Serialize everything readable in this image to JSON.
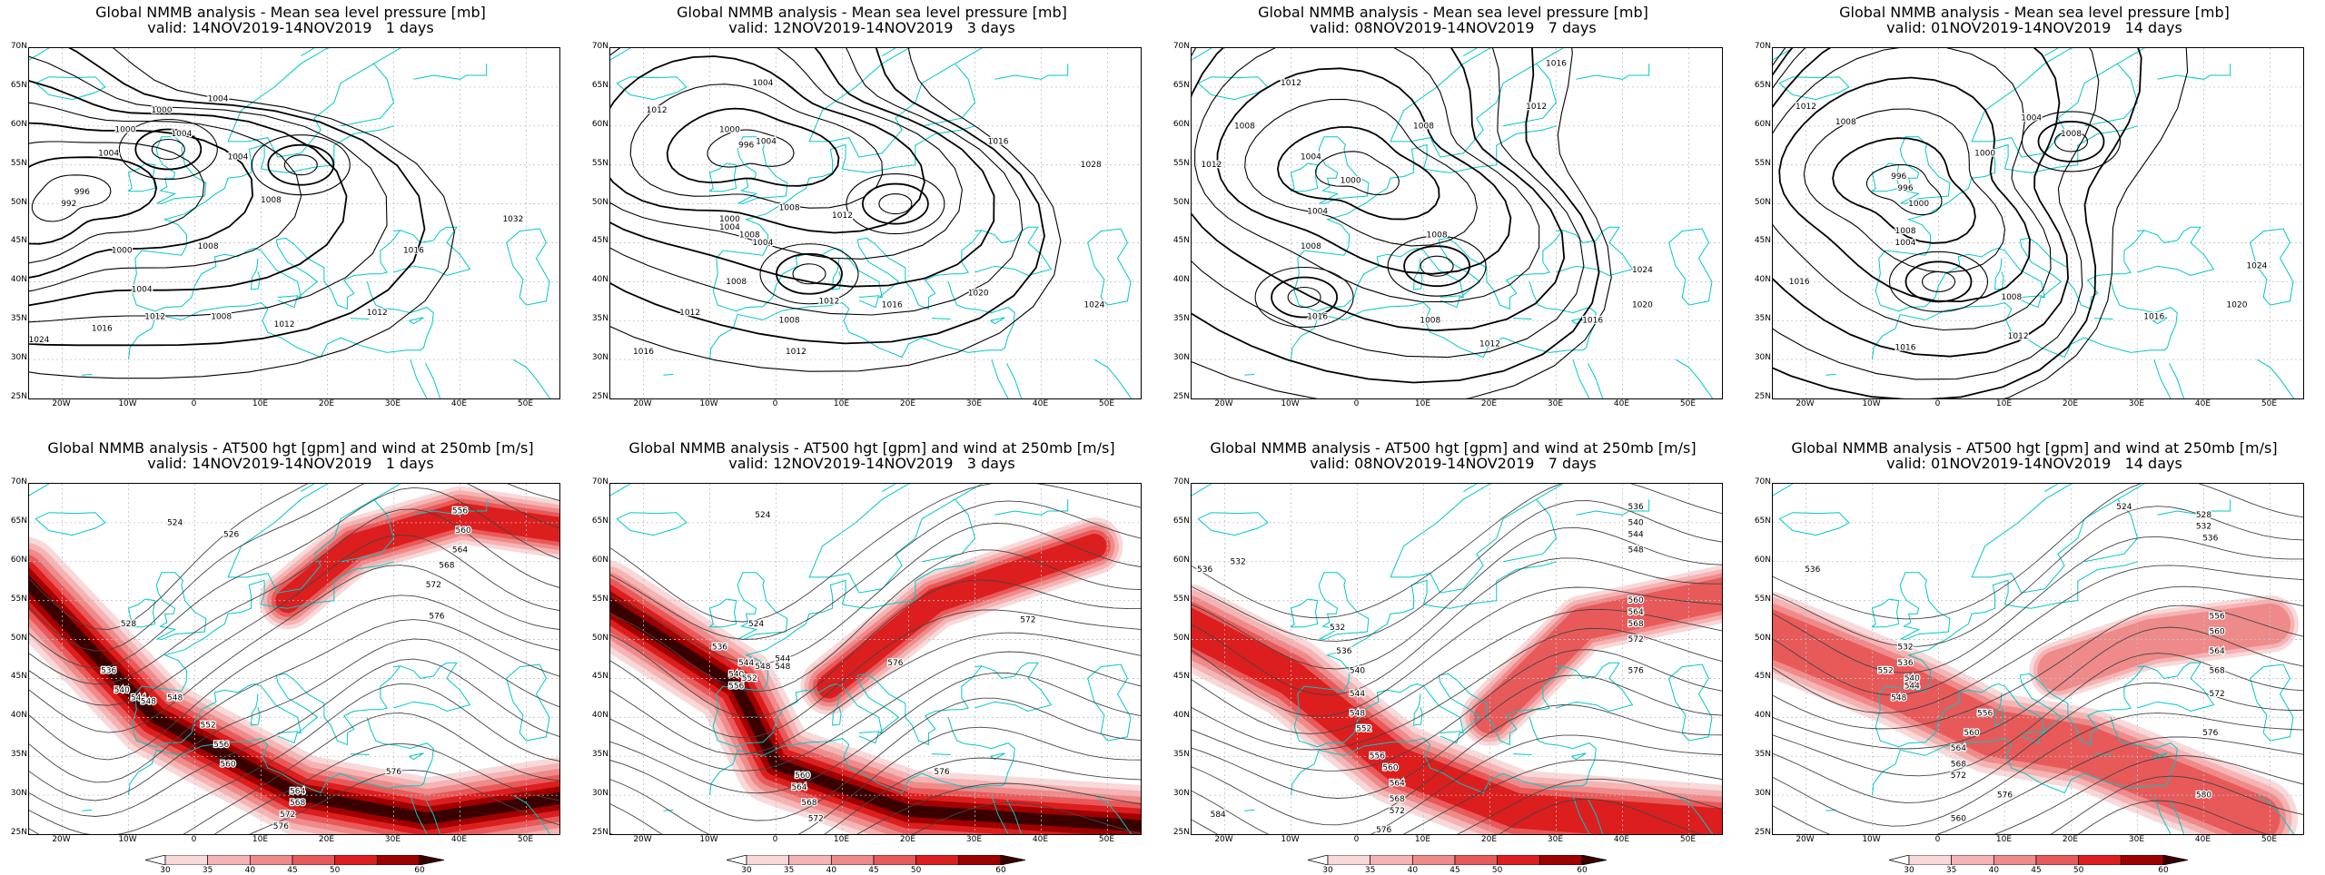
{
  "mslp_title": "Global NMMB analysis - Mean sea level pressure [mb]",
  "z500_title": "Global NMMB analysis - AT500 hgt [gpm] and wind at 250mb [m/s]",
  "lat_labels": [
    "70N",
    "65N",
    "60N",
    "55N",
    "50N",
    "45N",
    "40N",
    "35N",
    "30N",
    "25N"
  ],
  "lon_labels": [
    "20W",
    "10W",
    "0",
    "10E",
    "20E",
    "30E",
    "40E",
    "50E"
  ],
  "map_extent": {
    "lon": [
      -25,
      55
    ],
    "lat": [
      25,
      70
    ]
  },
  "colors": {
    "contour": "#000000",
    "coastline": "#00c8c8",
    "grid": "#c0c0c0",
    "wind_30": "#f8d8d8",
    "wind_35": "#f5b3b3",
    "wind_40": "#ef8a8a",
    "wind_45": "#e85a5a",
    "wind_50": "#dd1e1e",
    "wind_60": "#a00000",
    "wind_max": "#3a0000"
  },
  "colorbar": {
    "ticks": [
      "30",
      "35",
      "40",
      "45",
      "50",
      "60"
    ]
  },
  "periods": [
    {
      "valid": "valid: 14NOV2019-14NOV2019   1 days",
      "mslp_labels": [
        {
          "t": "1004",
          "lon": 3.5,
          "lat": 63.5
        },
        {
          "t": "1000",
          "lon": -5,
          "lat": 62
        },
        {
          "t": "1000",
          "lon": -10.5,
          "lat": 59.5
        },
        {
          "t": "1004",
          "lon": -2,
          "lat": 59
        },
        {
          "t": "1004",
          "lon": -13,
          "lat": 56.5
        },
        {
          "t": "1004",
          "lon": 6.5,
          "lat": 56
        },
        {
          "t": "996",
          "lon": -17,
          "lat": 51.5
        },
        {
          "t": "992",
          "lon": -19,
          "lat": 50
        },
        {
          "t": "1008",
          "lon": 11.5,
          "lat": 50.5
        },
        {
          "t": "1000",
          "lon": -11,
          "lat": 44
        },
        {
          "t": "1008",
          "lon": 2,
          "lat": 44.5
        },
        {
          "t": "1004",
          "lon": -8,
          "lat": 39
        },
        {
          "t": "1016",
          "lon": 33,
          "lat": 44
        },
        {
          "t": "1032",
          "lon": 48,
          "lat": 48
        },
        {
          "t": "1016",
          "lon": -14,
          "lat": 34
        },
        {
          "t": "1012",
          "lon": -6,
          "lat": 35.5
        },
        {
          "t": "1008",
          "lon": 4,
          "lat": 35.5
        },
        {
          "t": "1012",
          "lon": 13.5,
          "lat": 34.5
        },
        {
          "t": "1012",
          "lon": 27.5,
          "lat": 36
        },
        {
          "t": "1024",
          "lon": -23.5,
          "lat": 32.5
        }
      ],
      "z500_labels": [
        {
          "t": "524",
          "lon": -3,
          "lat": 65
        },
        {
          "t": "526",
          "lon": 5.5,
          "lat": 63.5
        },
        {
          "t": "556",
          "lon": 40,
          "lat": 66.5
        },
        {
          "t": "560",
          "lon": 40.5,
          "lat": 64
        },
        {
          "t": "564",
          "lon": 40,
          "lat": 61.5
        },
        {
          "t": "568",
          "lon": 38,
          "lat": 59.5
        },
        {
          "t": "572",
          "lon": 36,
          "lat": 57
        },
        {
          "t": "576",
          "lon": 36.5,
          "lat": 53
        },
        {
          "t": "528",
          "lon": -10,
          "lat": 52
        },
        {
          "t": "536",
          "lon": -13,
          "lat": 46
        },
        {
          "t": "540",
          "lon": -11,
          "lat": 43.5
        },
        {
          "t": "544",
          "lon": -8.5,
          "lat": 42.5
        },
        {
          "t": "548",
          "lon": -7,
          "lat": 42
        },
        {
          "t": "548",
          "lon": -3,
          "lat": 42.5
        },
        {
          "t": "552",
          "lon": 2,
          "lat": 39
        },
        {
          "t": "556",
          "lon": 4,
          "lat": 36.5
        },
        {
          "t": "560",
          "lon": 5,
          "lat": 34
        },
        {
          "t": "564",
          "lon": 15.5,
          "lat": 30.5
        },
        {
          "t": "568",
          "lon": 15.5,
          "lat": 29
        },
        {
          "t": "572",
          "lon": 14,
          "lat": 27.5
        },
        {
          "t": "576",
          "lon": 30,
          "lat": 33
        },
        {
          "t": "576",
          "lon": 13,
          "lat": 26
        }
      ]
    },
    {
      "valid": "valid: 12NOV2019-14NOV2019   3 days",
      "mslp_labels": [
        {
          "t": "1004",
          "lon": -2,
          "lat": 65.5
        },
        {
          "t": "1012",
          "lon": -18,
          "lat": 62
        },
        {
          "t": "1000",
          "lon": -7,
          "lat": 59.5
        },
        {
          "t": "996",
          "lon": -4.5,
          "lat": 57.5
        },
        {
          "t": "1004",
          "lon": -1.5,
          "lat": 58
        },
        {
          "t": "1016",
          "lon": 33.5,
          "lat": 58
        },
        {
          "t": "1028",
          "lon": 47.5,
          "lat": 55
        },
        {
          "t": "1008",
          "lon": 2,
          "lat": 49.5
        },
        {
          "t": "1012",
          "lon": 10,
          "lat": 48.5
        },
        {
          "t": "1000",
          "lon": -7,
          "lat": 48
        },
        {
          "t": "1004",
          "lon": -7,
          "lat": 47
        },
        {
          "t": "1008",
          "lon": -4,
          "lat": 46
        },
        {
          "t": "1004",
          "lon": -2,
          "lat": 45
        },
        {
          "t": "1008",
          "lon": -6,
          "lat": 40
        },
        {
          "t": "1012",
          "lon": -13,
          "lat": 36
        },
        {
          "t": "1012",
          "lon": 8,
          "lat": 37.5
        },
        {
          "t": "1016",
          "lon": 17.5,
          "lat": 37
        },
        {
          "t": "1020",
          "lon": 30.5,
          "lat": 38.5
        },
        {
          "t": "1024",
          "lon": 48,
          "lat": 37
        },
        {
          "t": "1008",
          "lon": 2,
          "lat": 35
        },
        {
          "t": "1016",
          "lon": -20,
          "lat": 31
        },
        {
          "t": "1012",
          "lon": 3,
          "lat": 31
        }
      ],
      "z500_labels": [
        {
          "t": "524",
          "lon": -2,
          "lat": 66
        },
        {
          "t": "524",
          "lon": -3,
          "lat": 52
        },
        {
          "t": "536",
          "lon": -8.5,
          "lat": 49
        },
        {
          "t": "540",
          "lon": -6,
          "lat": 45.5
        },
        {
          "t": "544",
          "lon": -4.5,
          "lat": 47
        },
        {
          "t": "548",
          "lon": -2,
          "lat": 46.5
        },
        {
          "t": "544",
          "lon": 1,
          "lat": 47.5
        },
        {
          "t": "548",
          "lon": 1,
          "lat": 46.5
        },
        {
          "t": "552",
          "lon": -4,
          "lat": 45
        },
        {
          "t": "556",
          "lon": -6,
          "lat": 44
        },
        {
          "t": "576",
          "lon": 18,
          "lat": 47
        },
        {
          "t": "572",
          "lon": 38,
          "lat": 52.5
        },
        {
          "t": "576",
          "lon": 25,
          "lat": 33
        },
        {
          "t": "560",
          "lon": 4,
          "lat": 32.5
        },
        {
          "t": "564",
          "lon": 3.5,
          "lat": 31
        },
        {
          "t": "568",
          "lon": 5,
          "lat": 29
        },
        {
          "t": "572",
          "lon": 6,
          "lat": 27
        }
      ]
    },
    {
      "valid": "valid: 08NOV2019-14NOV2019   7 days",
      "mslp_labels": [
        {
          "t": "1016",
          "lon": 30,
          "lat": 68
        },
        {
          "t": "1012",
          "lon": -10,
          "lat": 65.5
        },
        {
          "t": "1012",
          "lon": 27,
          "lat": 62.5
        },
        {
          "t": "1008",
          "lon": -17,
          "lat": 60
        },
        {
          "t": "1008",
          "lon": 10,
          "lat": 60
        },
        {
          "t": "1012",
          "lon": -22,
          "lat": 55
        },
        {
          "t": "1004",
          "lon": -7,
          "lat": 56
        },
        {
          "t": "1000",
          "lon": -1,
          "lat": 53
        },
        {
          "t": "1008",
          "lon": -7,
          "lat": 44.5
        },
        {
          "t": "1004",
          "lon": -6,
          "lat": 49
        },
        {
          "t": "1008",
          "lon": 12,
          "lat": 46
        },
        {
          "t": "1024",
          "lon": 43,
          "lat": 41.5
        },
        {
          "t": "1016",
          "lon": -6,
          "lat": 35.5
        },
        {
          "t": "1008",
          "lon": 11,
          "lat": 35
        },
        {
          "t": "1016",
          "lon": 35.5,
          "lat": 35
        },
        {
          "t": "1020",
          "lon": 43,
          "lat": 37
        },
        {
          "t": "1012",
          "lon": 20,
          "lat": 32
        }
      ],
      "z500_labels": [
        {
          "t": "536",
          "lon": 42,
          "lat": 67
        },
        {
          "t": "540",
          "lon": 42,
          "lat": 65
        },
        {
          "t": "544",
          "lon": 42,
          "lat": 63.5
        },
        {
          "t": "548",
          "lon": 42,
          "lat": 61.5
        },
        {
          "t": "532",
          "lon": -18,
          "lat": 60
        },
        {
          "t": "536",
          "lon": -23,
          "lat": 59
        },
        {
          "t": "560",
          "lon": 42,
          "lat": 55
        },
        {
          "t": "564",
          "lon": 42,
          "lat": 53.5
        },
        {
          "t": "568",
          "lon": 42,
          "lat": 52
        },
        {
          "t": "572",
          "lon": 42,
          "lat": 50
        },
        {
          "t": "576",
          "lon": 42,
          "lat": 46
        },
        {
          "t": "532",
          "lon": -3,
          "lat": 51.5
        },
        {
          "t": "536",
          "lon": -2,
          "lat": 48.5
        },
        {
          "t": "540",
          "lon": 0,
          "lat": 46
        },
        {
          "t": "544",
          "lon": 0,
          "lat": 43
        },
        {
          "t": "548",
          "lon": 0,
          "lat": 40.5
        },
        {
          "t": "552",
          "lon": 1,
          "lat": 38.5
        },
        {
          "t": "556",
          "lon": 3,
          "lat": 35
        },
        {
          "t": "560",
          "lon": 5,
          "lat": 33.5
        },
        {
          "t": "564",
          "lon": 6,
          "lat": 31.5
        },
        {
          "t": "568",
          "lon": 6,
          "lat": 29.5
        },
        {
          "t": "572",
          "lon": 6,
          "lat": 28
        },
        {
          "t": "576",
          "lon": 4,
          "lat": 25.5
        },
        {
          "t": "584",
          "lon": -21,
          "lat": 27.5
        }
      ]
    },
    {
      "valid": "valid: 01NOV2019-14NOV2019   14 days",
      "mslp_labels": [
        {
          "t": "1012",
          "lon": -20,
          "lat": 62.5
        },
        {
          "t": "1008",
          "lon": -14,
          "lat": 60.5
        },
        {
          "t": "1004",
          "lon": 14,
          "lat": 61
        },
        {
          "t": "1008",
          "lon": 20,
          "lat": 59
        },
        {
          "t": "1000",
          "lon": 7,
          "lat": 56.5
        },
        {
          "t": "996",
          "lon": -6,
          "lat": 53.5
        },
        {
          "t": "996",
          "lon": -5,
          "lat": 52
        },
        {
          "t": "1008",
          "lon": -5,
          "lat": 46.5
        },
        {
          "t": "1000",
          "lon": -3,
          "lat": 50
        },
        {
          "t": "1004",
          "lon": -5,
          "lat": 45
        },
        {
          "t": "1016",
          "lon": -21,
          "lat": 40
        },
        {
          "t": "1008",
          "lon": 11,
          "lat": 38
        },
        {
          "t": "1016",
          "lon": 32.5,
          "lat": 35.5
        },
        {
          "t": "1020",
          "lon": 45,
          "lat": 37
        },
        {
          "t": "1012",
          "lon": 12,
          "lat": 33
        },
        {
          "t": "1016",
          "lon": -5,
          "lat": 31.5
        },
        {
          "t": "1024",
          "lon": 48,
          "lat": 42
        }
      ],
      "z500_labels": [
        {
          "t": "524",
          "lon": 28,
          "lat": 67
        },
        {
          "t": "528",
          "lon": 40,
          "lat": 66
        },
        {
          "t": "532",
          "lon": 40,
          "lat": 64.5
        },
        {
          "t": "536",
          "lon": 41,
          "lat": 63
        },
        {
          "t": "536",
          "lon": -19,
          "lat": 59
        },
        {
          "t": "532",
          "lon": -5,
          "lat": 49
        },
        {
          "t": "536",
          "lon": -5,
          "lat": 47
        },
        {
          "t": "540",
          "lon": -4,
          "lat": 45
        },
        {
          "t": "544",
          "lon": -4,
          "lat": 44
        },
        {
          "t": "548",
          "lon": -6,
          "lat": 42.5
        },
        {
          "t": "552",
          "lon": -8,
          "lat": 46
        },
        {
          "t": "556",
          "lon": 42,
          "lat": 53
        },
        {
          "t": "560",
          "lon": 42,
          "lat": 51
        },
        {
          "t": "564",
          "lon": 42,
          "lat": 48.5
        },
        {
          "t": "568",
          "lon": 42,
          "lat": 46
        },
        {
          "t": "572",
          "lon": 42,
          "lat": 43
        },
        {
          "t": "576",
          "lon": 41,
          "lat": 38
        },
        {
          "t": "580",
          "lon": 40,
          "lat": 30
        },
        {
          "t": "576",
          "lon": 10,
          "lat": 30
        },
        {
          "t": "572",
          "lon": 3,
          "lat": 32.5
        },
        {
          "t": "568",
          "lon": 3,
          "lat": 34
        },
        {
          "t": "564",
          "lon": 3,
          "lat": 36
        },
        {
          "t": "560",
          "lon": 5,
          "lat": 38
        },
        {
          "t": "556",
          "lon": 7,
          "lat": 40.5
        },
        {
          "t": "560",
          "lon": 3,
          "lat": 27
        }
      ]
    }
  ]
}
